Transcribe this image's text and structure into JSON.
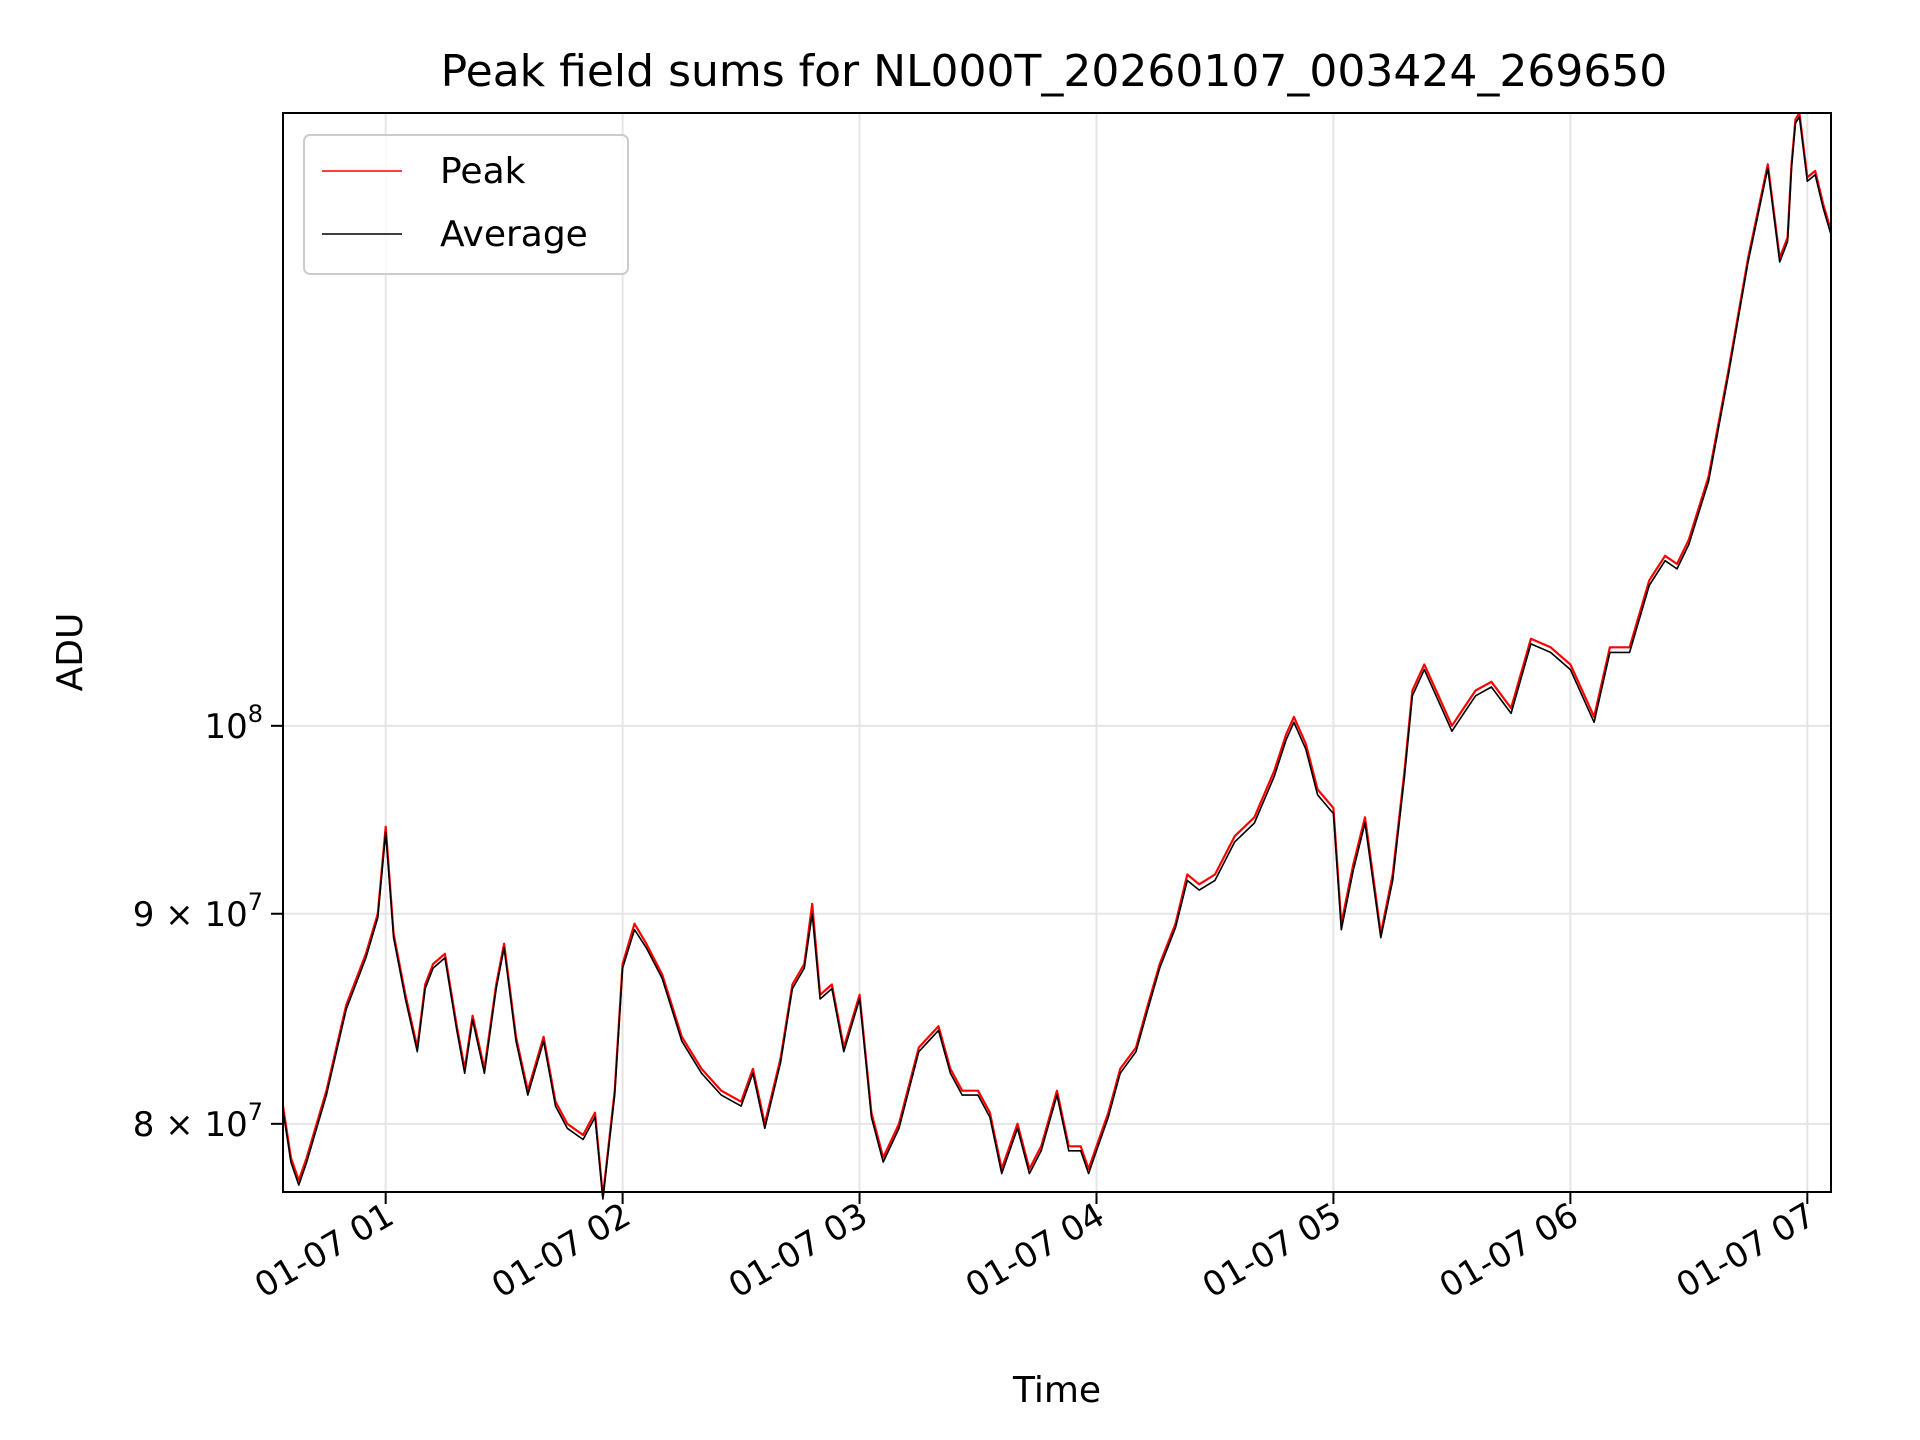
{
  "chart_data": {
    "type": "line",
    "title": "Peak field sums for NL000T_20260107_003424_269650",
    "xlabel": "Time",
    "ylabel": "ADU",
    "x_range": [
      "01-07 00:34",
      "01-07 07:06"
    ],
    "y_scale": "log",
    "y_range": [
      77000000,
      141000000
    ],
    "y_ticks": [
      {
        "value": 80000000,
        "label": "8 × 10^7",
        "mantissa": "8 × 10",
        "exp": "7"
      },
      {
        "value": 90000000,
        "label": "9 × 10^7",
        "mantissa": "9 × 10",
        "exp": "7"
      },
      {
        "value": 100000000,
        "label": "10^8",
        "mantissa": "10",
        "exp": "8"
      }
    ],
    "x_ticks": [
      {
        "time": "01-07 01:00",
        "label": "01-07 01"
      },
      {
        "time": "01-07 02:00",
        "label": "01-07 02"
      },
      {
        "time": "01-07 03:00",
        "label": "01-07 03"
      },
      {
        "time": "01-07 04:00",
        "label": "01-07 04"
      },
      {
        "time": "01-07 05:00",
        "label": "01-07 05"
      },
      {
        "time": "01-07 06:00",
        "label": "01-07 06"
      },
      {
        "time": "01-07 07:00",
        "label": "01-07 07"
      }
    ],
    "grid": true,
    "legend_position": "top-left",
    "x": [
      "00:34",
      "00:36",
      "00:38",
      "00:40",
      "00:45",
      "00:50",
      "00:55",
      "00:58",
      "01:00",
      "01:02",
      "01:05",
      "01:08",
      "01:10",
      "01:12",
      "01:15",
      "01:18",
      "01:20",
      "01:22",
      "01:25",
      "01:28",
      "01:30",
      "01:33",
      "01:36",
      "01:40",
      "01:43",
      "01:46",
      "01:50",
      "01:53",
      "01:55",
      "01:58",
      "02:00",
      "02:03",
      "02:06",
      "02:10",
      "02:15",
      "02:20",
      "02:25",
      "02:30",
      "02:33",
      "02:36",
      "02:40",
      "02:43",
      "02:46",
      "02:48",
      "02:50",
      "02:53",
      "02:56",
      "03:00",
      "03:03",
      "03:06",
      "03:10",
      "03:15",
      "03:20",
      "03:23",
      "03:26",
      "03:30",
      "03:33",
      "03:36",
      "03:40",
      "03:43",
      "03:46",
      "03:50",
      "03:53",
      "03:56",
      "03:58",
      "04:00",
      "04:03",
      "04:06",
      "04:10",
      "04:13",
      "04:16",
      "04:20",
      "04:23",
      "04:26",
      "04:30",
      "04:35",
      "04:40",
      "04:45",
      "04:48",
      "04:50",
      "04:53",
      "04:56",
      "05:00",
      "05:02",
      "05:05",
      "05:08",
      "05:10",
      "05:12",
      "05:15",
      "05:18",
      "05:20",
      "05:23",
      "05:26",
      "05:30",
      "05:33",
      "05:36",
      "05:40",
      "05:45",
      "05:50",
      "05:55",
      "06:00",
      "06:03",
      "06:06",
      "06:10",
      "06:15",
      "06:20",
      "06:24",
      "06:27",
      "06:30",
      "06:35",
      "06:40",
      "06:45",
      "06:50",
      "06:53",
      "06:55",
      "06:56",
      "06:57",
      "06:58",
      "07:00",
      "07:02",
      "07:04",
      "07:06"
    ],
    "series": [
      {
        "name": "Peak",
        "color": "#ff0000",
        "values": [
          80800000,
          78500000,
          77500000,
          78500000,
          81500000,
          85500000,
          88000000,
          90000000,
          94500000,
          89000000,
          86000000,
          83500000,
          86500000,
          87500000,
          88000000,
          84500000,
          82500000,
          85000000,
          82500000,
          86500000,
          88500000,
          84000000,
          81500000,
          84000000,
          81000000,
          80000000,
          79500000,
          80500000,
          76800000,
          81500000,
          87500000,
          89500000,
          88500000,
          87000000,
          84000000,
          82500000,
          81500000,
          81000000,
          82500000,
          80000000,
          83000000,
          86500000,
          87500000,
          90500000,
          86000000,
          86500000,
          83500000,
          86000000,
          80500000,
          78500000,
          80000000,
          83500000,
          84500000,
          82500000,
          81500000,
          81500000,
          80500000,
          78000000,
          80000000,
          78000000,
          79000000,
          81500000,
          79000000,
          79000000,
          78000000,
          79000000,
          80500000,
          82500000,
          83500000,
          85500000,
          87500000,
          89500000,
          92000000,
          91500000,
          92000000,
          94000000,
          95000000,
          97500000,
          99500000,
          100500000,
          99000000,
          96500000,
          95500000,
          89500000,
          92500000,
          95000000,
          92000000,
          89000000,
          92000000,
          97500000,
          102000000,
          103500000,
          102000000,
          100000000,
          101000000,
          102000000,
          102500000,
          101000000,
          105000000,
          104500000,
          103500000,
          102000000,
          100500000,
          104500000,
          104500000,
          108500000,
          110000000,
          109500000,
          111000000,
          115000000,
          122000000,
          130000000,
          137000000,
          130000000,
          131500000,
          137000000,
          140500000,
          141000000,
          136000000,
          136500000,
          134000000,
          132000000
        ]
      },
      {
        "name": "Average",
        "color": "#000000",
        "values": [
          80600000,
          78300000,
          77300000,
          78300000,
          81300000,
          85300000,
          87800000,
          89800000,
          94200000,
          88800000,
          85800000,
          83300000,
          86300000,
          87300000,
          87800000,
          84300000,
          82300000,
          84800000,
          82300000,
          86300000,
          88300000,
          83800000,
          81300000,
          83800000,
          80800000,
          79800000,
          79300000,
          80300000,
          76700000,
          81300000,
          87300000,
          89200000,
          88300000,
          86800000,
          83800000,
          82300000,
          81300000,
          80800000,
          82300000,
          79800000,
          82800000,
          86300000,
          87300000,
          90000000,
          85800000,
          86300000,
          83300000,
          85800000,
          80300000,
          78300000,
          79800000,
          83300000,
          84300000,
          82300000,
          81300000,
          81300000,
          80300000,
          77800000,
          79800000,
          77800000,
          78800000,
          81300000,
          78800000,
          78800000,
          77800000,
          78800000,
          80300000,
          82300000,
          83300000,
          85300000,
          87300000,
          89300000,
          91700000,
          91200000,
          91700000,
          93700000,
          94700000,
          97200000,
          99200000,
          100200000,
          98700000,
          96200000,
          95200000,
          89200000,
          92200000,
          94700000,
          91700000,
          88800000,
          91700000,
          97200000,
          101700000,
          103200000,
          101700000,
          99700000,
          100700000,
          101700000,
          102200000,
          100700000,
          104700000,
          104200000,
          103200000,
          101700000,
          100200000,
          104200000,
          104200000,
          108200000,
          109700000,
          109200000,
          110700000,
          114700000,
          121700000,
          129700000,
          136700000,
          129700000,
          131200000,
          136700000,
          140200000,
          140700000,
          135700000,
          136200000,
          133700000,
          131700000
        ]
      }
    ]
  }
}
